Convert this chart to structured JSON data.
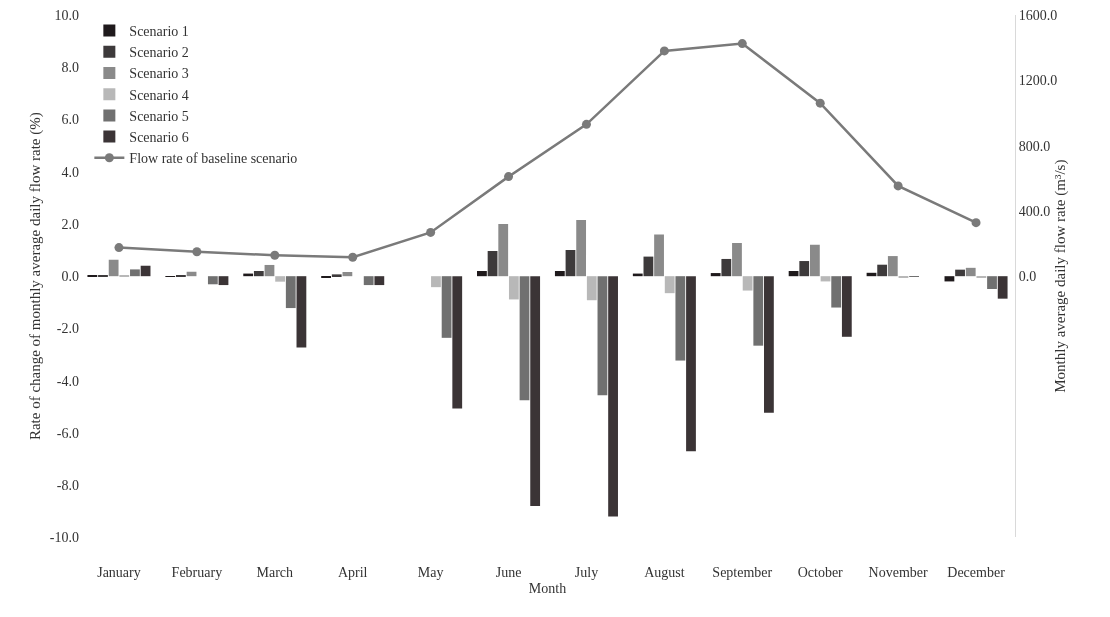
{
  "chart_data": {
    "type": "bar",
    "xlabel": "Month",
    "ylabel": "Rate of change of monthly average daily flow rate (%)",
    "y2label": "Monthly average daily flow rate (m³/s)",
    "categories": [
      "January",
      "February",
      "March",
      "April",
      "May",
      "June",
      "July",
      "August",
      "September",
      "October",
      "November",
      "December"
    ],
    "series": [
      {
        "name": "Scenario 1",
        "color": "#1f1a1c",
        "values": [
          0.02,
          -0.02,
          0.1,
          -0.06,
          0,
          0.2,
          0.2,
          0.1,
          0.12,
          0.2,
          0.13,
          -0.2
        ]
      },
      {
        "name": "Scenario 2",
        "color": "#3d3a3b",
        "values": [
          0.02,
          0.03,
          0.2,
          0.07,
          0,
          0.96,
          1.0,
          0.75,
          0.66,
          0.58,
          0.44,
          0.25
        ]
      },
      {
        "name": "Scenario 3",
        "color": "#8a8a8a",
        "values": [
          0.63,
          0.17,
          0.43,
          0.16,
          0,
          2.0,
          2.15,
          1.6,
          1.27,
          1.2,
          0.77,
          0.32
        ]
      },
      {
        "name": "Scenario 4",
        "color": "#b8b8b8",
        "values": [
          0.02,
          0,
          -0.21,
          0,
          -0.42,
          -0.89,
          -0.92,
          -0.65,
          -0.55,
          -0.2,
          -0.04,
          -0.05
        ]
      },
      {
        "name": "Scenario 5",
        "color": "#707070",
        "values": [
          0.26,
          -0.31,
          -1.22,
          -0.34,
          -2.36,
          -4.75,
          -4.56,
          -3.23,
          -2.66,
          -1.2,
          -0.02,
          -0.49
        ]
      },
      {
        "name": "Scenario 6",
        "color": "#3b3436",
        "values": [
          0.4,
          -0.34,
          -2.73,
          -0.34,
          -5.07,
          -8.8,
          -9.2,
          -6.7,
          -5.23,
          -2.32,
          0,
          -0.86
        ]
      },
      {
        "name": "Flow rate of baseline scenario",
        "type": "line",
        "axis": "y2",
        "color": "#7a7a7a",
        "marker": "circle",
        "line_style": "solid",
        "values": [
          175,
          150,
          128,
          116,
          268,
          610,
          930,
          1380,
          1425,
          1060,
          553,
          328
        ]
      }
    ],
    "ylim": [
      -10,
      10
    ],
    "yticks": [
      {
        "value": -10,
        "label": "-10.0"
      },
      {
        "value": -8,
        "label": "-8.0"
      },
      {
        "value": -6,
        "label": "-6.0"
      },
      {
        "value": -4,
        "label": "-4.0"
      },
      {
        "value": -2,
        "label": "-2.0"
      },
      {
        "value": 0,
        "label": "0.0"
      },
      {
        "value": 2,
        "label": "2.0"
      },
      {
        "value": 4,
        "label": "4.0"
      },
      {
        "value": 6,
        "label": "6.0"
      },
      {
        "value": 8,
        "label": "8.0"
      },
      {
        "value": 10,
        "label": "10.0"
      }
    ],
    "y2lim": [
      -1600,
      1600
    ],
    "y2ticks": [
      {
        "value": 0,
        "label": "0.0"
      },
      {
        "value": 400,
        "label": "400.0"
      },
      {
        "value": 800,
        "label": "800.0"
      },
      {
        "value": 1200,
        "label": "1200.0"
      },
      {
        "value": 1600,
        "label": "1600.0"
      }
    ],
    "grid": false,
    "legend": "top left"
  }
}
